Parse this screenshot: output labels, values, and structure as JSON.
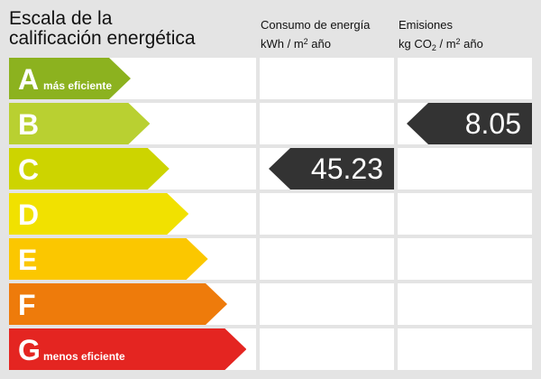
{
  "title": {
    "line1": "Escala de la",
    "line2": "calificación energética"
  },
  "consumption_header": {
    "line1": "Consumo de energía",
    "unit_prefix": "kWh / m",
    "unit_sup": "2",
    "unit_suffix": " año"
  },
  "emissions_header": {
    "line1": "Emisiones",
    "unit_prefix": "kg CO",
    "unit_sub": "2",
    "unit_mid": " / m",
    "unit_sup": "2",
    "unit_suffix": " año"
  },
  "ratings": [
    {
      "letter": "A",
      "label": "más eficiente",
      "color": "#8cb21f"
    },
    {
      "letter": "B",
      "label": "",
      "color": "#b9d031"
    },
    {
      "letter": "C",
      "label": "",
      "color": "#cdd400"
    },
    {
      "letter": "D",
      "label": "",
      "color": "#f1e100"
    },
    {
      "letter": "E",
      "label": "",
      "color": "#fbc700"
    },
    {
      "letter": "F",
      "label": "",
      "color": "#ee7b0b"
    },
    {
      "letter": "G",
      "label": "menos eficiente",
      "color": "#e42521"
    }
  ],
  "consumption": {
    "value": "45.23",
    "rating": "C"
  },
  "emissions": {
    "value": "8.05",
    "rating": "B"
  },
  "badge_color": "#333333"
}
